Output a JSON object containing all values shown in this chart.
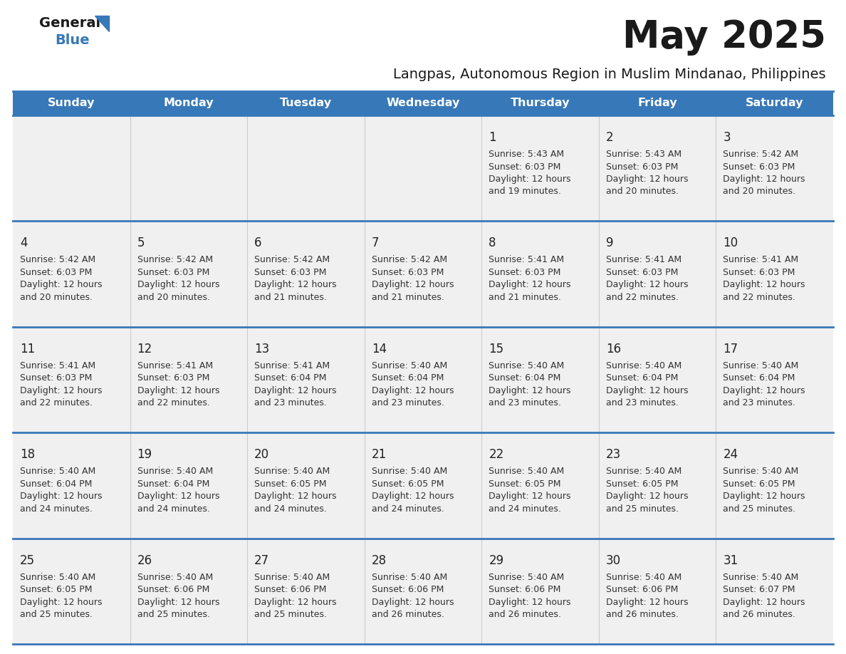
{
  "title": "May 2025",
  "subtitle": "Langpas, Autonomous Region in Muslim Mindanao, Philippines",
  "days_of_week": [
    "Sunday",
    "Monday",
    "Tuesday",
    "Wednesday",
    "Thursday",
    "Friday",
    "Saturday"
  ],
  "header_bg": "#3778b8",
  "header_text": "#ffffff",
  "cell_bg": "#f0f0f0",
  "day_number_color": "#222222",
  "text_color": "#333333",
  "row_divider_color": "#3778b8",
  "title_color": "#1a1a1a",
  "subtitle_color": "#1a1a1a",
  "logo_general_color": "#1a1a1a",
  "logo_blue_color": "#3778b8",
  "calendar_data": [
    [
      null,
      null,
      null,
      null,
      {
        "day": 1,
        "sunrise": "5:43 AM",
        "sunset": "6:03 PM",
        "daylight": "12 hours and 19 minutes."
      },
      {
        "day": 2,
        "sunrise": "5:43 AM",
        "sunset": "6:03 PM",
        "daylight": "12 hours and 20 minutes."
      },
      {
        "day": 3,
        "sunrise": "5:42 AM",
        "sunset": "6:03 PM",
        "daylight": "12 hours and 20 minutes."
      }
    ],
    [
      {
        "day": 4,
        "sunrise": "5:42 AM",
        "sunset": "6:03 PM",
        "daylight": "12 hours and 20 minutes."
      },
      {
        "day": 5,
        "sunrise": "5:42 AM",
        "sunset": "6:03 PM",
        "daylight": "12 hours and 20 minutes."
      },
      {
        "day": 6,
        "sunrise": "5:42 AM",
        "sunset": "6:03 PM",
        "daylight": "12 hours and 21 minutes."
      },
      {
        "day": 7,
        "sunrise": "5:42 AM",
        "sunset": "6:03 PM",
        "daylight": "12 hours and 21 minutes."
      },
      {
        "day": 8,
        "sunrise": "5:41 AM",
        "sunset": "6:03 PM",
        "daylight": "12 hours and 21 minutes."
      },
      {
        "day": 9,
        "sunrise": "5:41 AM",
        "sunset": "6:03 PM",
        "daylight": "12 hours and 22 minutes."
      },
      {
        "day": 10,
        "sunrise": "5:41 AM",
        "sunset": "6:03 PM",
        "daylight": "12 hours and 22 minutes."
      }
    ],
    [
      {
        "day": 11,
        "sunrise": "5:41 AM",
        "sunset": "6:03 PM",
        "daylight": "12 hours and 22 minutes."
      },
      {
        "day": 12,
        "sunrise": "5:41 AM",
        "sunset": "6:03 PM",
        "daylight": "12 hours and 22 minutes."
      },
      {
        "day": 13,
        "sunrise": "5:41 AM",
        "sunset": "6:04 PM",
        "daylight": "12 hours and 23 minutes."
      },
      {
        "day": 14,
        "sunrise": "5:40 AM",
        "sunset": "6:04 PM",
        "daylight": "12 hours and 23 minutes."
      },
      {
        "day": 15,
        "sunrise": "5:40 AM",
        "sunset": "6:04 PM",
        "daylight": "12 hours and 23 minutes."
      },
      {
        "day": 16,
        "sunrise": "5:40 AM",
        "sunset": "6:04 PM",
        "daylight": "12 hours and 23 minutes."
      },
      {
        "day": 17,
        "sunrise": "5:40 AM",
        "sunset": "6:04 PM",
        "daylight": "12 hours and 23 minutes."
      }
    ],
    [
      {
        "day": 18,
        "sunrise": "5:40 AM",
        "sunset": "6:04 PM",
        "daylight": "12 hours and 24 minutes."
      },
      {
        "day": 19,
        "sunrise": "5:40 AM",
        "sunset": "6:04 PM",
        "daylight": "12 hours and 24 minutes."
      },
      {
        "day": 20,
        "sunrise": "5:40 AM",
        "sunset": "6:05 PM",
        "daylight": "12 hours and 24 minutes."
      },
      {
        "day": 21,
        "sunrise": "5:40 AM",
        "sunset": "6:05 PM",
        "daylight": "12 hours and 24 minutes."
      },
      {
        "day": 22,
        "sunrise": "5:40 AM",
        "sunset": "6:05 PM",
        "daylight": "12 hours and 24 minutes."
      },
      {
        "day": 23,
        "sunrise": "5:40 AM",
        "sunset": "6:05 PM",
        "daylight": "12 hours and 25 minutes."
      },
      {
        "day": 24,
        "sunrise": "5:40 AM",
        "sunset": "6:05 PM",
        "daylight": "12 hours and 25 minutes."
      }
    ],
    [
      {
        "day": 25,
        "sunrise": "5:40 AM",
        "sunset": "6:05 PM",
        "daylight": "12 hours and 25 minutes."
      },
      {
        "day": 26,
        "sunrise": "5:40 AM",
        "sunset": "6:06 PM",
        "daylight": "12 hours and 25 minutes."
      },
      {
        "day": 27,
        "sunrise": "5:40 AM",
        "sunset": "6:06 PM",
        "daylight": "12 hours and 25 minutes."
      },
      {
        "day": 28,
        "sunrise": "5:40 AM",
        "sunset": "6:06 PM",
        "daylight": "12 hours and 26 minutes."
      },
      {
        "day": 29,
        "sunrise": "5:40 AM",
        "sunset": "6:06 PM",
        "daylight": "12 hours and 26 minutes."
      },
      {
        "day": 30,
        "sunrise": "5:40 AM",
        "sunset": "6:06 PM",
        "daylight": "12 hours and 26 minutes."
      },
      {
        "day": 31,
        "sunrise": "5:40 AM",
        "sunset": "6:07 PM",
        "daylight": "12 hours and 26 minutes."
      }
    ]
  ]
}
